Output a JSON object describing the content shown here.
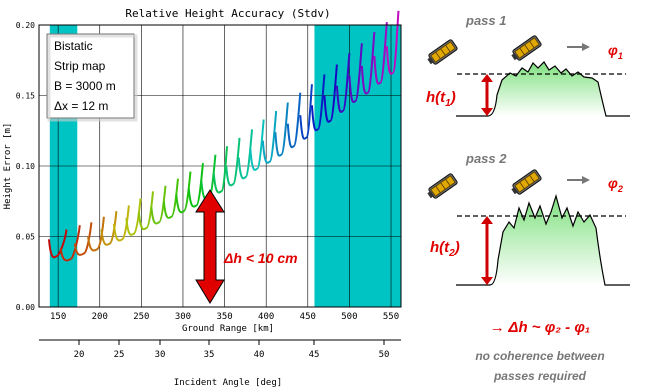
{
  "chart": {
    "title": "Relative Height Accuracy (Stdv)",
    "xlabel": "Ground Range [km]",
    "x2label": "Incident Angle [deg]",
    "ylabel": "Height Error [m]",
    "xticks": [
      "150",
      "200",
      "250",
      "300",
      "350",
      "400",
      "450",
      "500",
      "550"
    ],
    "x2ticks": [
      "20",
      "25",
      "30",
      "35",
      "40",
      "45",
      "50"
    ],
    "yticks": [
      "0.00",
      "0.05",
      "0.10",
      "0.15",
      "0.20"
    ],
    "legend": [
      "Bistatic",
      "Strip map",
      "B = 3000 m",
      "Δx = 12 m"
    ],
    "annotation": "Δh  < 10 cm",
    "colors": {
      "shade": "#00c4c4",
      "arrow": "#e00000"
    }
  },
  "chart_data": {
    "type": "line",
    "title": "Relative Height Accuracy (Stdv)",
    "xlabel": "Ground Range [km]",
    "ylabel": "Height Error [m]",
    "xlim": [
      127,
      562
    ],
    "ylim": [
      0.0,
      0.2
    ],
    "shaded_x_ranges": [
      [
        140,
        173
      ],
      [
        458,
        562
      ]
    ],
    "series": [
      {
        "x": [
          139,
          148,
          160
        ],
        "y": [
          0.048,
          0.036,
          0.055
        ]
      },
      {
        "x": [
          153,
          165,
          176
        ],
        "y": [
          0.042,
          0.034,
          0.058
        ]
      },
      {
        "x": [
          170,
          181,
          190
        ],
        "y": [
          0.045,
          0.038,
          0.06
        ]
      },
      {
        "x": [
          186,
          197,
          205
        ],
        "y": [
          0.05,
          0.041,
          0.064
        ]
      },
      {
        "x": [
          202,
          212,
          220
        ],
        "y": [
          0.055,
          0.045,
          0.068
        ]
      },
      {
        "x": [
          217,
          227,
          235
        ],
        "y": [
          0.059,
          0.048,
          0.072
        ]
      },
      {
        "x": [
          232,
          241,
          249
        ],
        "y": [
          0.063,
          0.052,
          0.077
        ]
      },
      {
        "x": [
          247,
          256,
          264
        ],
        "y": [
          0.067,
          0.056,
          0.082
        ]
      },
      {
        "x": [
          262,
          271,
          279
        ],
        "y": [
          0.071,
          0.06,
          0.086
        ]
      },
      {
        "x": [
          277,
          286,
          294
        ],
        "y": [
          0.075,
          0.064,
          0.091
        ]
      },
      {
        "x": [
          292,
          301,
          309
        ],
        "y": [
          0.08,
          0.068,
          0.096
        ]
      },
      {
        "x": [
          307,
          316,
          324
        ],
        "y": [
          0.084,
          0.072,
          0.102
        ]
      },
      {
        "x": [
          322,
          331,
          339
        ],
        "y": [
          0.09,
          0.077,
          0.108
        ]
      },
      {
        "x": [
          337,
          346,
          353
        ],
        "y": [
          0.095,
          0.082,
          0.114
        ]
      },
      {
        "x": [
          352,
          360,
          368
        ],
        "y": [
          0.1,
          0.087,
          0.12
        ]
      },
      {
        "x": [
          367,
          375,
          383
        ],
        "y": [
          0.106,
          0.092,
          0.126
        ]
      },
      {
        "x": [
          381,
          389,
          397
        ],
        "y": [
          0.112,
          0.098,
          0.133
        ]
      },
      {
        "x": [
          396,
          404,
          412
        ],
        "y": [
          0.118,
          0.103,
          0.139
        ]
      },
      {
        "x": [
          411,
          418,
          426
        ],
        "y": [
          0.124,
          0.108,
          0.145
        ]
      },
      {
        "x": [
          426,
          433,
          441
        ],
        "y": [
          0.13,
          0.114,
          0.152
        ]
      },
      {
        "x": [
          441,
          448,
          455
        ],
        "y": [
          0.136,
          0.12,
          0.158
        ]
      },
      {
        "x": [
          455,
          462,
          470
        ],
        "y": [
          0.143,
          0.126,
          0.165
        ]
      },
      {
        "x": [
          470,
          477,
          485
        ],
        "y": [
          0.15,
          0.132,
          0.172
        ]
      },
      {
        "x": [
          485,
          492,
          500
        ],
        "y": [
          0.157,
          0.139,
          0.18
        ]
      },
      {
        "x": [
          500,
          507,
          515
        ],
        "y": [
          0.164,
          0.146,
          0.187
        ]
      },
      {
        "x": [
          515,
          522,
          530
        ],
        "y": [
          0.171,
          0.152,
          0.195
        ]
      },
      {
        "x": [
          530,
          537,
          545
        ],
        "y": [
          0.178,
          0.159,
          0.202
        ]
      },
      {
        "x": [
          545,
          552,
          559
        ],
        "y": [
          0.185,
          0.166,
          0.21
        ]
      }
    ]
  },
  "diagram": {
    "pass1": "pass 1",
    "pass2": "pass 2",
    "h1_main": "h(t",
    "h1_sub": "1",
    "h2_main": "h(t",
    "h2_sub": "2",
    "phi1_main": "φ",
    "phi1_sub": "1",
    "phi2_main": "φ",
    "phi2_sub": "2",
    "relation": "→ Δh ~ φ₂ - φ₁",
    "note_line1": "no coherence between",
    "note_line2": "passes required"
  }
}
